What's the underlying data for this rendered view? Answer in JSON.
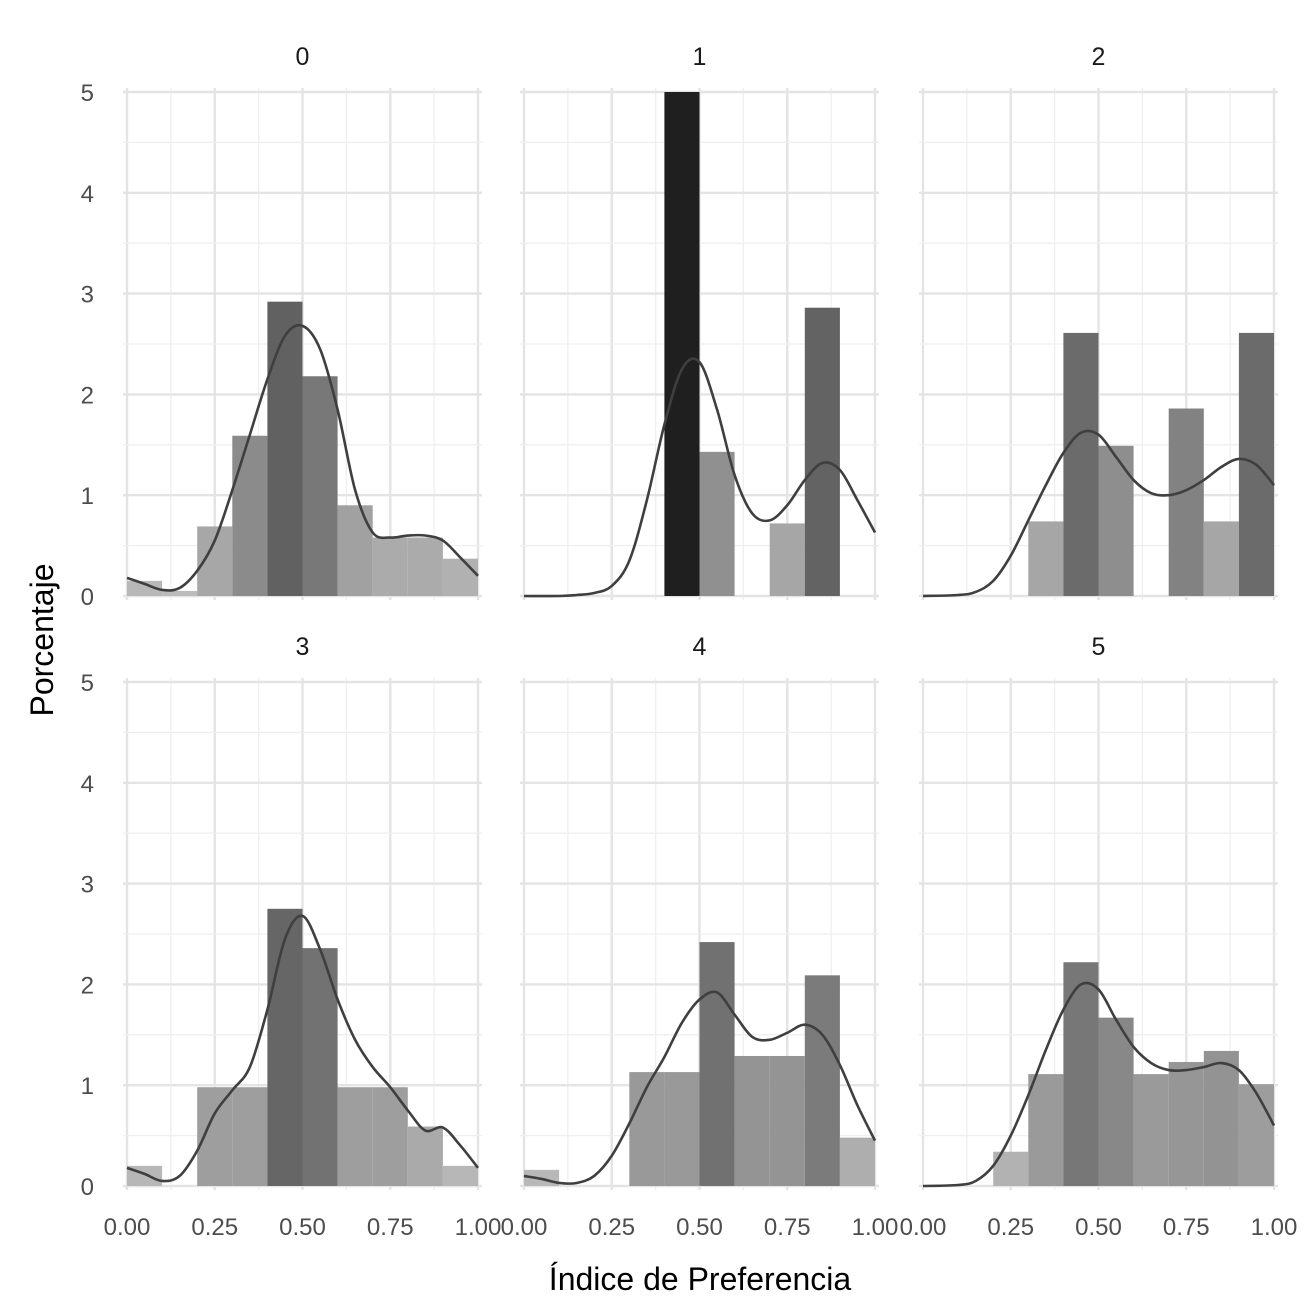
{
  "chart_data": {
    "type": "bar",
    "subtype": "faceted histogram with density curve",
    "xlabel": "Índice de Preferencia",
    "ylabel": "Porcentaje",
    "xlim": [
      0,
      1
    ],
    "ylim": [
      0,
      5
    ],
    "x_ticks": [
      "0.00",
      "0.25",
      "0.50",
      "0.75",
      "1.00"
    ],
    "y_ticks": [
      "0",
      "1",
      "2",
      "3",
      "4",
      "5"
    ],
    "bin_width": 0.1,
    "grid": true,
    "legend": "none",
    "fill_scale": {
      "low": "#bdbdbd",
      "high": "#1f1f1f"
    },
    "density_color": "#3f3f3f",
    "panels": [
      {
        "label": "0",
        "bins": [
          {
            "x": 0.05,
            "y": 0.15
          },
          {
            "x": 0.15,
            "y": 0.05
          },
          {
            "x": 0.25,
            "y": 0.69
          },
          {
            "x": 0.35,
            "y": 1.59
          },
          {
            "x": 0.45,
            "y": 2.92
          },
          {
            "x": 0.55,
            "y": 2.18
          },
          {
            "x": 0.65,
            "y": 0.9
          },
          {
            "x": 0.75,
            "y": 0.58
          },
          {
            "x": 0.85,
            "y": 0.58
          },
          {
            "x": 0.95,
            "y": 0.37
          }
        ],
        "density": [
          [
            0,
            0.18
          ],
          [
            0.05,
            0.12
          ],
          [
            0.1,
            0.06
          ],
          [
            0.15,
            0.08
          ],
          [
            0.2,
            0.25
          ],
          [
            0.25,
            0.55
          ],
          [
            0.3,
            1.05
          ],
          [
            0.35,
            1.6
          ],
          [
            0.4,
            2.15
          ],
          [
            0.45,
            2.58
          ],
          [
            0.5,
            2.68
          ],
          [
            0.55,
            2.45
          ],
          [
            0.6,
            1.85
          ],
          [
            0.65,
            1.05
          ],
          [
            0.7,
            0.63
          ],
          [
            0.75,
            0.58
          ],
          [
            0.8,
            0.6
          ],
          [
            0.85,
            0.6
          ],
          [
            0.9,
            0.55
          ],
          [
            0.95,
            0.38
          ],
          [
            1.0,
            0.2
          ]
        ]
      },
      {
        "label": "1",
        "bins": [
          {
            "x": 0.45,
            "y": 5.0
          },
          {
            "x": 0.55,
            "y": 1.43
          },
          {
            "x": 0.75,
            "y": 0.72
          },
          {
            "x": 0.85,
            "y": 2.86
          }
        ],
        "density": [
          [
            0,
            0.0
          ],
          [
            0.1,
            0.0
          ],
          [
            0.15,
            0.01
          ],
          [
            0.2,
            0.03
          ],
          [
            0.25,
            0.1
          ],
          [
            0.3,
            0.35
          ],
          [
            0.35,
            0.95
          ],
          [
            0.4,
            1.7
          ],
          [
            0.45,
            2.25
          ],
          [
            0.5,
            2.32
          ],
          [
            0.55,
            1.85
          ],
          [
            0.6,
            1.2
          ],
          [
            0.65,
            0.82
          ],
          [
            0.7,
            0.75
          ],
          [
            0.75,
            0.9
          ],
          [
            0.8,
            1.15
          ],
          [
            0.85,
            1.32
          ],
          [
            0.9,
            1.25
          ],
          [
            0.95,
            0.95
          ],
          [
            1.0,
            0.63
          ]
        ]
      },
      {
        "label": "2",
        "bins": [
          {
            "x": 0.35,
            "y": 0.74
          },
          {
            "x": 0.45,
            "y": 2.61
          },
          {
            "x": 0.55,
            "y": 1.49
          },
          {
            "x": 0.75,
            "y": 1.86
          },
          {
            "x": 0.85,
            "y": 0.74
          },
          {
            "x": 0.95,
            "y": 2.61
          }
        ],
        "density": [
          [
            0,
            0.0
          ],
          [
            0.1,
            0.01
          ],
          [
            0.15,
            0.04
          ],
          [
            0.2,
            0.15
          ],
          [
            0.25,
            0.4
          ],
          [
            0.3,
            0.75
          ],
          [
            0.35,
            1.1
          ],
          [
            0.4,
            1.42
          ],
          [
            0.45,
            1.62
          ],
          [
            0.5,
            1.6
          ],
          [
            0.55,
            1.38
          ],
          [
            0.6,
            1.15
          ],
          [
            0.65,
            1.02
          ],
          [
            0.7,
            1.0
          ],
          [
            0.75,
            1.05
          ],
          [
            0.8,
            1.15
          ],
          [
            0.85,
            1.28
          ],
          [
            0.9,
            1.36
          ],
          [
            0.95,
            1.3
          ],
          [
            1.0,
            1.1
          ]
        ]
      },
      {
        "label": "3",
        "bins": [
          {
            "x": 0.05,
            "y": 0.2
          },
          {
            "x": 0.25,
            "y": 0.98
          },
          {
            "x": 0.35,
            "y": 0.98
          },
          {
            "x": 0.45,
            "y": 2.75
          },
          {
            "x": 0.55,
            "y": 2.36
          },
          {
            "x": 0.65,
            "y": 0.98
          },
          {
            "x": 0.75,
            "y": 0.98
          },
          {
            "x": 0.85,
            "y": 0.59
          },
          {
            "x": 0.95,
            "y": 0.2
          }
        ],
        "density": [
          [
            0,
            0.18
          ],
          [
            0.05,
            0.12
          ],
          [
            0.1,
            0.05
          ],
          [
            0.15,
            0.1
          ],
          [
            0.2,
            0.35
          ],
          [
            0.25,
            0.72
          ],
          [
            0.3,
            0.95
          ],
          [
            0.35,
            1.18
          ],
          [
            0.4,
            1.75
          ],
          [
            0.45,
            2.45
          ],
          [
            0.5,
            2.68
          ],
          [
            0.55,
            2.35
          ],
          [
            0.6,
            1.85
          ],
          [
            0.65,
            1.45
          ],
          [
            0.7,
            1.18
          ],
          [
            0.75,
            0.98
          ],
          [
            0.8,
            0.75
          ],
          [
            0.85,
            0.55
          ],
          [
            0.9,
            0.58
          ],
          [
            0.95,
            0.4
          ],
          [
            1.0,
            0.18
          ]
        ]
      },
      {
        "label": "4",
        "bins": [
          {
            "x": 0.05,
            "y": 0.16
          },
          {
            "x": 0.35,
            "y": 1.13
          },
          {
            "x": 0.45,
            "y": 1.13
          },
          {
            "x": 0.55,
            "y": 2.42
          },
          {
            "x": 0.65,
            "y": 1.29
          },
          {
            "x": 0.75,
            "y": 1.29
          },
          {
            "x": 0.85,
            "y": 2.09
          },
          {
            "x": 0.95,
            "y": 0.48
          }
        ],
        "density": [
          [
            0,
            0.1
          ],
          [
            0.05,
            0.07
          ],
          [
            0.1,
            0.03
          ],
          [
            0.15,
            0.03
          ],
          [
            0.2,
            0.1
          ],
          [
            0.25,
            0.3
          ],
          [
            0.3,
            0.62
          ],
          [
            0.35,
            0.98
          ],
          [
            0.4,
            1.28
          ],
          [
            0.45,
            1.62
          ],
          [
            0.5,
            1.85
          ],
          [
            0.55,
            1.92
          ],
          [
            0.6,
            1.7
          ],
          [
            0.65,
            1.48
          ],
          [
            0.7,
            1.45
          ],
          [
            0.75,
            1.52
          ],
          [
            0.8,
            1.6
          ],
          [
            0.85,
            1.5
          ],
          [
            0.9,
            1.2
          ],
          [
            0.95,
            0.8
          ],
          [
            1.0,
            0.45
          ]
        ]
      },
      {
        "label": "5",
        "bins": [
          {
            "x": 0.25,
            "y": 0.34
          },
          {
            "x": 0.35,
            "y": 1.11
          },
          {
            "x": 0.45,
            "y": 2.22
          },
          {
            "x": 0.55,
            "y": 1.67
          },
          {
            "x": 0.65,
            "y": 1.11
          },
          {
            "x": 0.75,
            "y": 1.23
          },
          {
            "x": 0.85,
            "y": 1.34
          },
          {
            "x": 0.95,
            "y": 1.01
          }
        ],
        "density": [
          [
            0,
            0.0
          ],
          [
            0.1,
            0.01
          ],
          [
            0.15,
            0.05
          ],
          [
            0.2,
            0.2
          ],
          [
            0.25,
            0.5
          ],
          [
            0.3,
            0.9
          ],
          [
            0.35,
            1.35
          ],
          [
            0.4,
            1.75
          ],
          [
            0.45,
            2.0
          ],
          [
            0.5,
            1.95
          ],
          [
            0.55,
            1.65
          ],
          [
            0.6,
            1.38
          ],
          [
            0.65,
            1.22
          ],
          [
            0.7,
            1.15
          ],
          [
            0.75,
            1.15
          ],
          [
            0.8,
            1.18
          ],
          [
            0.85,
            1.22
          ],
          [
            0.9,
            1.15
          ],
          [
            0.95,
            0.92
          ],
          [
            1.0,
            0.6
          ]
        ]
      }
    ]
  }
}
